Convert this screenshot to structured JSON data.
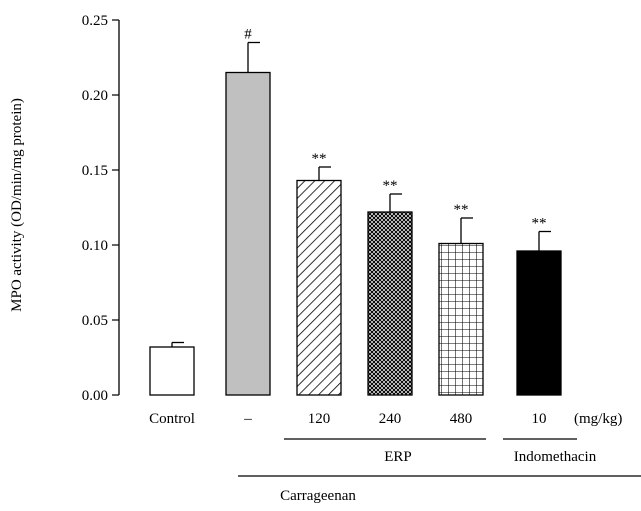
{
  "chart_data": {
    "type": "bar",
    "title": "",
    "ylabel": "MPO activity (OD/min/mg protein)",
    "ylim": [
      0,
      0.25
    ],
    "yticks": [
      0.0,
      0.05,
      0.1,
      0.15,
      0.2,
      0.25
    ],
    "ytick_labels": [
      "0.00",
      "0.05",
      "0.10",
      "0.15",
      "0.20",
      "0.25"
    ],
    "categories": [
      "Control",
      "–",
      "120",
      "240",
      "480",
      "10"
    ],
    "unit_label": "(mg/kg)",
    "values": [
      0.032,
      0.215,
      0.143,
      0.122,
      0.101,
      0.096
    ],
    "errors": [
      0.003,
      0.02,
      0.009,
      0.012,
      0.017,
      0.013
    ],
    "significance": [
      "",
      "#",
      "**",
      "**",
      "**",
      "**"
    ],
    "fills": [
      "white",
      "gray",
      "diagonal",
      "crosshatch",
      "grid",
      "black"
    ],
    "colors": {
      "gray": "#c0c0c0",
      "black": "#000000"
    },
    "groups": [
      {
        "label": "ERP",
        "from": 2,
        "to": 4
      },
      {
        "label": "Indomethacin",
        "from": 5,
        "to": 5
      },
      {
        "label": "Carrageenan",
        "from": 1,
        "to": 5
      }
    ]
  }
}
